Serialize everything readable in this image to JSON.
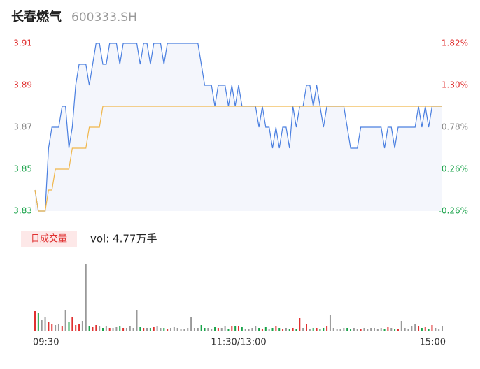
{
  "chart_data": [
    {
      "type": "line",
      "title": "长春燃气",
      "code": "600333.SH",
      "ylim": [
        3.83,
        3.91
      ],
      "yticks": [
        3.83,
        3.85,
        3.87,
        3.89,
        3.91
      ],
      "y2lim": [
        -0.26,
        1.82
      ],
      "y2ticks": [
        {
          "value": -0.26,
          "label": "-0.26%"
        },
        {
          "value": 0.26,
          "label": "0.26%"
        },
        {
          "value": 0.78,
          "label": "0.78%"
        },
        {
          "value": 1.3,
          "label": "1.30%"
        },
        {
          "value": 1.82,
          "label": "1.82%"
        }
      ],
      "series": [
        {
          "name": "price",
          "color": "#4a7fe0",
          "values": [
            3.84,
            3.83,
            3.83,
            3.83,
            3.86,
            3.87,
            3.87,
            3.87,
            3.88,
            3.88,
            3.86,
            3.87,
            3.89,
            3.9,
            3.9,
            3.9,
            3.89,
            3.9,
            3.91,
            3.91,
            3.9,
            3.9,
            3.91,
            3.91,
            3.91,
            3.9,
            3.91,
            3.91,
            3.91,
            3.91,
            3.91,
            3.9,
            3.91,
            3.91,
            3.9,
            3.91,
            3.91,
            3.91,
            3.9,
            3.91,
            3.91,
            3.91,
            3.91,
            3.91,
            3.91,
            3.91,
            3.91,
            3.91,
            3.91,
            3.9,
            3.89,
            3.89,
            3.89,
            3.88,
            3.89,
            3.89,
            3.89,
            3.88,
            3.89,
            3.88,
            3.89,
            3.88,
            3.88,
            3.88,
            3.88,
            3.88,
            3.87,
            3.88,
            3.87,
            3.87,
            3.86,
            3.87,
            3.86,
            3.87,
            3.87,
            3.86,
            3.88,
            3.87,
            3.88,
            3.88,
            3.89,
            3.89,
            3.88,
            3.89,
            3.88,
            3.87,
            3.88,
            3.88,
            3.88,
            3.88,
            3.88,
            3.88,
            3.87,
            3.86,
            3.86,
            3.86,
            3.87,
            3.87,
            3.87,
            3.87,
            3.87,
            3.87,
            3.87,
            3.86,
            3.87,
            3.87,
            3.86,
            3.87,
            3.87,
            3.87,
            3.87,
            3.87,
            3.87,
            3.88,
            3.87,
            3.88,
            3.87,
            3.88,
            3.88,
            3.88,
            3.88
          ]
        },
        {
          "name": "average",
          "color": "#f0b64a",
          "values": [
            3.84,
            3.83,
            3.83,
            3.83,
            3.84,
            3.84,
            3.85,
            3.85,
            3.85,
            3.85,
            3.85,
            3.86,
            3.86,
            3.86,
            3.86,
            3.86,
            3.87,
            3.87,
            3.87,
            3.87,
            3.88,
            3.88,
            3.88,
            3.88,
            3.88,
            3.88,
            3.88,
            3.88,
            3.88,
            3.88,
            3.88,
            3.88,
            3.88,
            3.88,
            3.88,
            3.88,
            3.88,
            3.88,
            3.88,
            3.88,
            3.88,
            3.88,
            3.88,
            3.88,
            3.88,
            3.88,
            3.88,
            3.88,
            3.88,
            3.88,
            3.88,
            3.88,
            3.88,
            3.88,
            3.88,
            3.88,
            3.88,
            3.88,
            3.88,
            3.88,
            3.88,
            3.88,
            3.88,
            3.88,
            3.88,
            3.88,
            3.88,
            3.88,
            3.88,
            3.88,
            3.88,
            3.88,
            3.88,
            3.88,
            3.88,
            3.88,
            3.88,
            3.88,
            3.88,
            3.88,
            3.88,
            3.88,
            3.88,
            3.88,
            3.88,
            3.88,
            3.88,
            3.88,
            3.88,
            3.88,
            3.88,
            3.88,
            3.88,
            3.88,
            3.88,
            3.88,
            3.88,
            3.88,
            3.88,
            3.88,
            3.88,
            3.88,
            3.88,
            3.88,
            3.88,
            3.88,
            3.88,
            3.88,
            3.88,
            3.88,
            3.88,
            3.88,
            3.88,
            3.88,
            3.88,
            3.88,
            3.88,
            3.88,
            3.88,
            3.88,
            3.88
          ]
        }
      ]
    },
    {
      "type": "bar",
      "label": "日成交量",
      "volume_text": "vol: 4.77万手",
      "ylim": [
        0,
        100
      ],
      "up_color": "#e03030",
      "down_color": "#1aa34a",
      "flat_color": "#999999",
      "categories": [
        "09:30",
        null,
        null,
        null,
        null,
        null,
        null,
        null,
        null,
        null,
        null,
        null,
        null,
        null,
        null,
        null,
        null,
        null,
        null,
        null,
        null,
        null,
        null,
        null,
        null,
        null,
        null,
        null,
        null,
        null,
        null,
        null,
        null,
        null,
        null,
        null,
        null,
        null,
        null,
        null,
        null,
        null,
        null,
        null,
        null,
        null,
        null,
        null,
        null,
        null,
        null,
        null,
        null,
        null,
        null,
        null,
        null,
        null,
        null,
        null,
        "11:30/13:00",
        null,
        null,
        null,
        null,
        null,
        null,
        null,
        null,
        null,
        null,
        null,
        null,
        null,
        null,
        null,
        null,
        null,
        null,
        null,
        null,
        null,
        null,
        null,
        null,
        null,
        null,
        null,
        null,
        null,
        null,
        null,
        null,
        null,
        null,
        null,
        null,
        null,
        null,
        null,
        null,
        null,
        null,
        null,
        null,
        null,
        null,
        null,
        null,
        null,
        null,
        null,
        null,
        null,
        null,
        null,
        null,
        null,
        null,
        null,
        "15:00"
      ],
      "values": [
        28,
        25,
        15,
        20,
        12,
        10,
        8,
        10,
        6,
        30,
        12,
        20,
        8,
        10,
        14,
        95,
        6,
        5,
        8,
        6,
        4,
        6,
        3,
        3,
        5,
        6,
        4,
        3,
        6,
        4,
        30,
        5,
        3,
        4,
        3,
        5,
        6,
        3,
        3,
        2,
        4,
        5,
        3,
        2,
        2,
        3,
        19,
        3,
        4,
        8,
        3,
        3,
        2,
        5,
        4,
        3,
        7,
        2,
        6,
        7,
        6,
        5,
        2,
        2,
        4,
        6,
        3,
        2,
        5,
        2,
        3,
        7,
        3,
        2,
        3,
        2,
        3,
        2,
        18,
        4,
        10,
        2,
        3,
        3,
        2,
        3,
        7,
        22,
        3,
        2,
        2,
        3,
        4,
        2,
        3,
        2,
        2,
        3,
        2,
        3,
        4,
        2,
        3,
        2,
        5,
        3,
        2,
        2,
        13,
        3,
        2,
        6,
        9,
        6,
        3,
        5,
        2,
        8,
        3,
        2,
        6
      ]
    }
  ]
}
